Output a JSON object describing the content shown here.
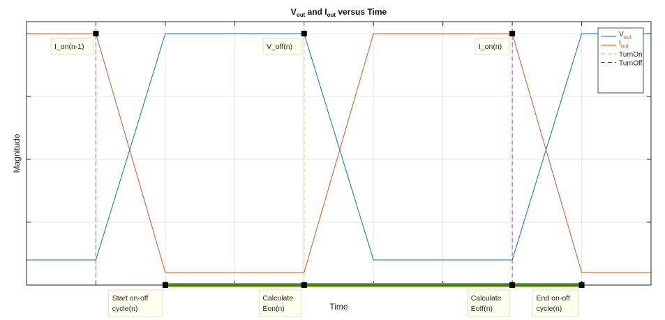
{
  "chart_data": {
    "type": "line",
    "title": {
      "main1": "V",
      "sub1": "out",
      "mid": " and I",
      "sub2": "out",
      "end": " versus Time"
    },
    "xlabel": "Time",
    "ylabel": "Magnitude",
    "xlim": [
      0,
      9
    ],
    "ylim": [
      0,
      4.19
    ],
    "xticks": [
      1,
      2,
      3,
      4,
      5,
      6,
      7,
      8
    ],
    "yticks": [
      1,
      2,
      3,
      4
    ],
    "grid": true,
    "legend_placement": "top-right",
    "series": [
      {
        "name": "Vout",
        "label_main": "V",
        "label_sub": "out",
        "color": "#0072BD",
        "x": [
          0,
          1,
          2,
          4,
          5,
          7,
          8,
          9
        ],
        "y": [
          0.4,
          0.4,
          4,
          4,
          0.4,
          0.4,
          4,
          4
        ]
      },
      {
        "name": "Iout",
        "label_main": "I",
        "label_sub": "out",
        "color": "#D95319",
        "x": [
          0,
          1,
          2,
          4,
          5,
          7,
          8,
          9
        ],
        "y": [
          4,
          4,
          0.2,
          0.2,
          4,
          4,
          0.2,
          0.2
        ]
      }
    ],
    "vlines": [
      {
        "name": "TurnOn",
        "color": "#EDB120",
        "x": [
          4
        ]
      },
      {
        "name": "TurnOff",
        "color": "#7E2F8E",
        "x": [
          1,
          7
        ]
      }
    ],
    "timeline": {
      "color": "#77AC30",
      "x": [
        2,
        8
      ],
      "y": 0
    },
    "markers": [
      {
        "x": 1,
        "y": 4,
        "label": "I_on(n-1)",
        "pos": "below-left"
      },
      {
        "x": 4,
        "y": 4,
        "label": "V_off(n)",
        "pos": "below-left"
      },
      {
        "x": 7,
        "y": 4,
        "label": "I_on(n)",
        "pos": "below-left"
      },
      {
        "x": 2,
        "y": 0,
        "label": "Start on-off\ncycle(n)",
        "pos": "below-left"
      },
      {
        "x": 4,
        "y": 0,
        "label": "Calculate\nEon(n)",
        "pos": "below-left"
      },
      {
        "x": 7,
        "y": 0,
        "label": "Calculate\nEoff(n)",
        "pos": "below-left"
      },
      {
        "x": 8,
        "y": 0,
        "label": "End on-off\ncycle(n)",
        "pos": "below-left"
      }
    ]
  }
}
